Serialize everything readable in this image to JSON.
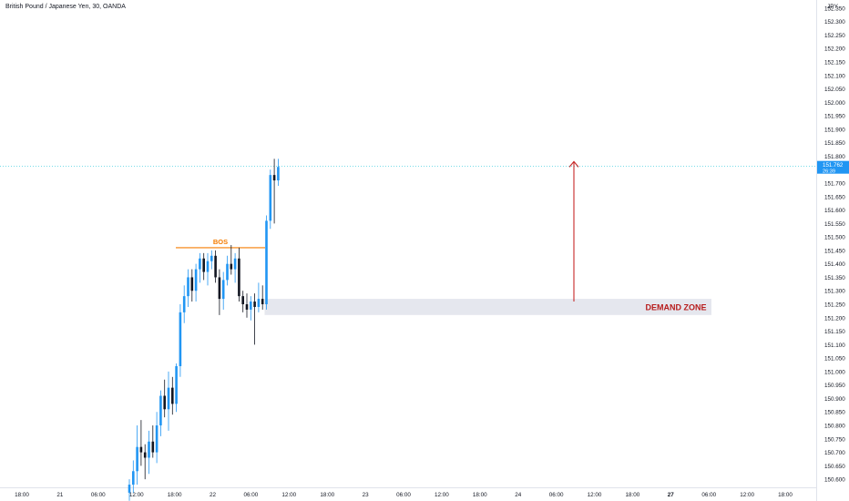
{
  "header": {
    "title": "British Pound / Japanese Yen, 30, OANDA",
    "currency": "JPY"
  },
  "colors": {
    "up": "#2196f3",
    "down": "#131722",
    "bos": "#f57c00",
    "arrow": "#c62828",
    "zone_fill": "#e0e3eb",
    "zone_text": "#b71c1c",
    "price_line": "#26c6da",
    "price_tag": "#2196f3"
  },
  "price_tag": {
    "price": "151.762",
    "timer": "26:39"
  },
  "chart_data": {
    "type": "candlestick",
    "title": "British Pound / Japanese Yen, 30, OANDA",
    "y_axis": {
      "ticks": [
        "150.600",
        "150.650",
        "150.700",
        "150.750",
        "150.800",
        "150.850",
        "150.900",
        "150.950",
        "151.000",
        "151.050",
        "151.100",
        "151.150",
        "151.200",
        "151.250",
        "151.300",
        "151.350",
        "151.400",
        "151.450",
        "151.500",
        "151.550",
        "151.600",
        "151.650",
        "151.700",
        "151.750",
        "151.800",
        "151.850",
        "151.900",
        "151.950",
        "152.000",
        "152.050",
        "152.100",
        "152.150",
        "152.200",
        "152.250",
        "152.300",
        "152.350"
      ],
      "ylim": [
        150.57,
        152.4
      ]
    },
    "x_axis": {
      "ticks": [
        "18:00",
        "21",
        "06:00",
        "12:00",
        "18:00",
        "22",
        "06:00",
        "12:00",
        "18:00",
        "23",
        "06:00",
        "12:00",
        "18:00",
        "24",
        "06:00",
        "12:00",
        "18:00",
        "27",
        "06:00",
        "12:00",
        "18:00"
      ]
    },
    "last_price": 151.762,
    "candles": [
      {
        "o": 150.55,
        "h": 150.6,
        "l": 150.52,
        "c": 150.58
      },
      {
        "o": 150.58,
        "h": 150.67,
        "l": 150.55,
        "c": 150.63
      },
      {
        "o": 150.63,
        "h": 150.8,
        "l": 150.58,
        "c": 150.72
      },
      {
        "o": 150.72,
        "h": 150.82,
        "l": 150.65,
        "c": 150.7
      },
      {
        "o": 150.7,
        "h": 150.73,
        "l": 150.6,
        "c": 150.68
      },
      {
        "o": 150.68,
        "h": 150.78,
        "l": 150.62,
        "c": 150.74
      },
      {
        "o": 150.74,
        "h": 150.8,
        "l": 150.68,
        "c": 150.7
      },
      {
        "o": 150.7,
        "h": 150.85,
        "l": 150.66,
        "c": 150.8
      },
      {
        "o": 150.8,
        "h": 150.93,
        "l": 150.76,
        "c": 150.91
      },
      {
        "o": 150.91,
        "h": 150.97,
        "l": 150.83,
        "c": 150.86
      },
      {
        "o": 150.86,
        "h": 151.0,
        "l": 150.78,
        "c": 150.94
      },
      {
        "o": 150.94,
        "h": 150.98,
        "l": 150.84,
        "c": 150.88
      },
      {
        "o": 150.88,
        "h": 151.03,
        "l": 150.85,
        "c": 151.02
      },
      {
        "o": 151.02,
        "h": 151.25,
        "l": 150.98,
        "c": 151.22
      },
      {
        "o": 151.22,
        "h": 151.32,
        "l": 151.18,
        "c": 151.28
      },
      {
        "o": 151.28,
        "h": 151.38,
        "l": 151.24,
        "c": 151.35
      },
      {
        "o": 151.35,
        "h": 151.38,
        "l": 151.26,
        "c": 151.3
      },
      {
        "o": 151.3,
        "h": 151.4,
        "l": 151.26,
        "c": 151.38
      },
      {
        "o": 151.38,
        "h": 151.44,
        "l": 151.33,
        "c": 151.42
      },
      {
        "o": 151.42,
        "h": 151.44,
        "l": 151.34,
        "c": 151.37
      },
      {
        "o": 151.37,
        "h": 151.44,
        "l": 151.32,
        "c": 151.41
      },
      {
        "o": 151.41,
        "h": 151.45,
        "l": 151.38,
        "c": 151.43
      },
      {
        "o": 151.43,
        "h": 151.45,
        "l": 151.33,
        "c": 151.35
      },
      {
        "o": 151.35,
        "h": 151.38,
        "l": 151.21,
        "c": 151.27
      },
      {
        "o": 151.27,
        "h": 151.37,
        "l": 151.23,
        "c": 151.34
      },
      {
        "o": 151.34,
        "h": 151.43,
        "l": 151.32,
        "c": 151.4
      },
      {
        "o": 151.4,
        "h": 151.47,
        "l": 151.36,
        "c": 151.38
      },
      {
        "o": 151.38,
        "h": 151.44,
        "l": 151.33,
        "c": 151.42
      },
      {
        "o": 151.42,
        "h": 151.46,
        "l": 151.26,
        "c": 151.28
      },
      {
        "o": 151.28,
        "h": 151.3,
        "l": 151.22,
        "c": 151.25
      },
      {
        "o": 151.25,
        "h": 151.29,
        "l": 151.2,
        "c": 151.23
      },
      {
        "o": 151.23,
        "h": 151.28,
        "l": 151.19,
        "c": 151.26
      },
      {
        "o": 151.26,
        "h": 151.29,
        "l": 151.1,
        "c": 151.24
      },
      {
        "o": 151.24,
        "h": 151.33,
        "l": 151.22,
        "c": 151.27
      },
      {
        "o": 151.27,
        "h": 151.32,
        "l": 151.23,
        "c": 151.25
      },
      {
        "o": 151.25,
        "h": 151.58,
        "l": 151.23,
        "c": 151.56
      },
      {
        "o": 151.56,
        "h": 151.75,
        "l": 151.53,
        "c": 151.73
      },
      {
        "o": 151.73,
        "h": 151.79,
        "l": 151.55,
        "c": 151.71
      },
      {
        "o": 151.71,
        "h": 151.79,
        "l": 151.69,
        "c": 151.76
      }
    ],
    "annotations": {
      "bos": {
        "label": "BOS",
        "price": 151.46,
        "from_index": 13,
        "to_index": 34
      },
      "demand_zone": {
        "label": "DEMAND ZONE",
        "top": 151.27,
        "bottom": 151.21,
        "from_index": 35
      },
      "arrow": {
        "from_price": 151.26,
        "to_price": 151.78
      }
    }
  }
}
